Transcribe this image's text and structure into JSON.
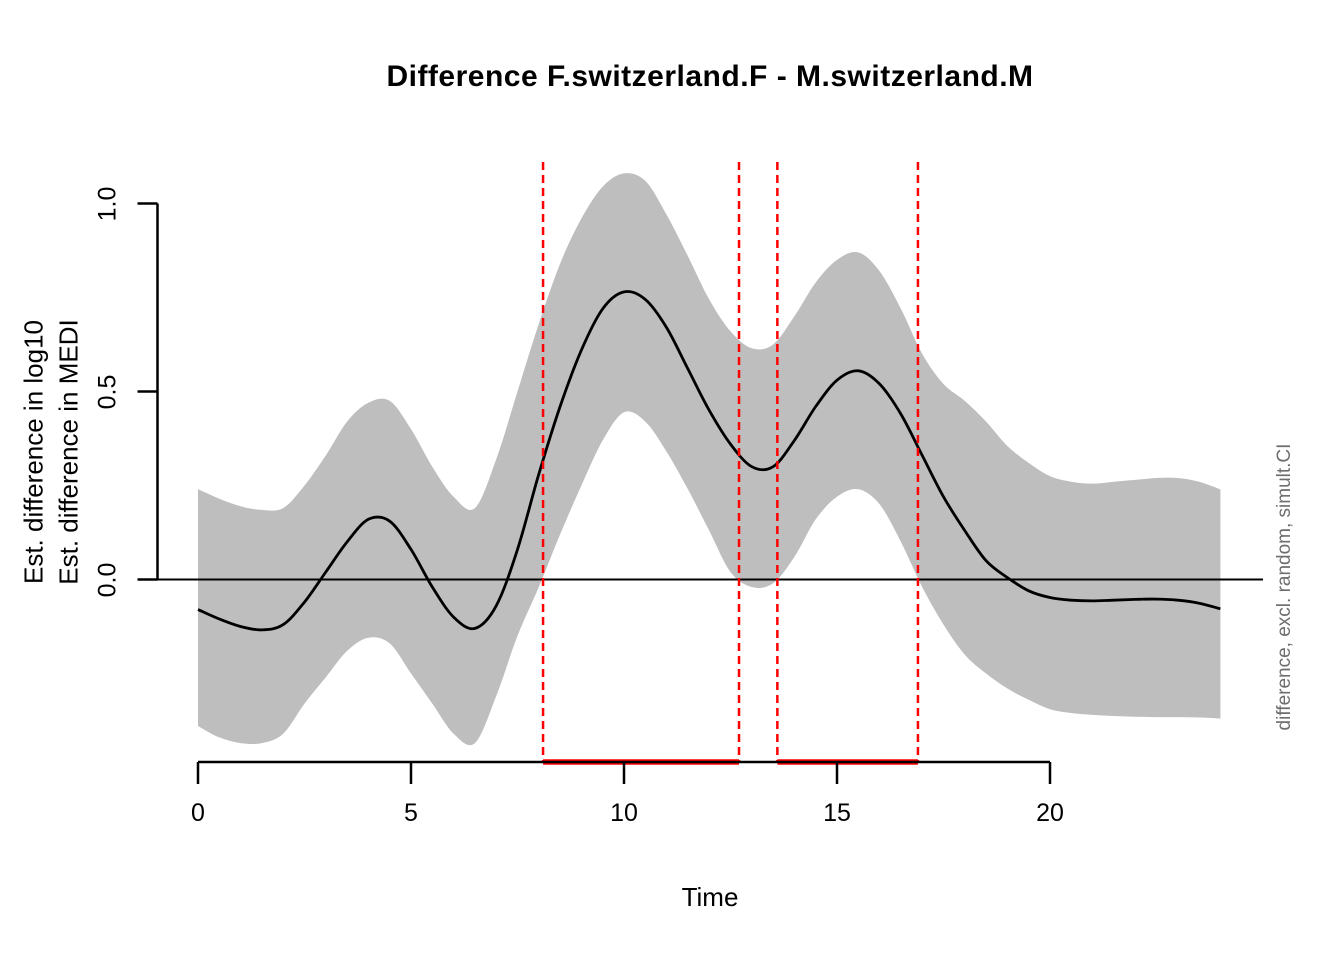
{
  "title": "Difference F.switzerland.F - M.switzerland.M",
  "chart_data": {
    "type": "line",
    "title": "Difference F.switzerland.F - M.switzerland.M",
    "xlabel": "Time",
    "ylabel_lines": [
      "Est. difference in log10",
      "Est. difference in MEDI"
    ],
    "right_label": "difference, excl. random, simult.CI",
    "legend": "none",
    "grid": "off",
    "xlim": [
      0,
      24
    ],
    "ylim": [
      -0.5,
      1.12
    ],
    "x_tick_labels": [
      "0",
      "5",
      "10",
      "15",
      "20"
    ],
    "x_tick_values": [
      0,
      5,
      10,
      15,
      20
    ],
    "y_tick_labels": [
      "0.0",
      "0.5",
      "1.0"
    ],
    "y_tick_values": [
      0,
      0.5,
      1
    ],
    "zero_reference_line": 0,
    "x": [
      0,
      0.5,
      1,
      1.5,
      2,
      2.5,
      3,
      3.5,
      4,
      4.5,
      5,
      5.5,
      6,
      6.5,
      7,
      7.5,
      8,
      8.5,
      9,
      9.5,
      10,
      10.5,
      11,
      11.5,
      12,
      12.5,
      13,
      13.5,
      14,
      14.5,
      15,
      15.5,
      16,
      16.5,
      17,
      17.5,
      18,
      18.5,
      19,
      19.5,
      20,
      20.5,
      21,
      21.5,
      22,
      22.5,
      23,
      23.5,
      24
    ],
    "series": [
      {
        "name": "estimate",
        "values": [
          -0.08,
          -0.105,
          -0.125,
          -0.134,
          -0.12,
          -0.06,
          0.02,
          0.1,
          0.16,
          0.155,
          0.08,
          -0.02,
          -0.1,
          -0.13,
          -0.07,
          0.08,
          0.28,
          0.46,
          0.61,
          0.72,
          0.765,
          0.745,
          0.67,
          0.56,
          0.45,
          0.36,
          0.3,
          0.3,
          0.37,
          0.46,
          0.53,
          0.555,
          0.52,
          0.44,
          0.33,
          0.22,
          0.13,
          0.05,
          0.005,
          -0.03,
          -0.048,
          -0.055,
          -0.057,
          -0.055,
          -0.053,
          -0.052,
          -0.055,
          -0.063,
          -0.078
        ]
      },
      {
        "name": "lower_simult_CI",
        "values": [
          -0.39,
          -0.42,
          -0.435,
          -0.435,
          -0.41,
          -0.33,
          -0.26,
          -0.19,
          -0.155,
          -0.17,
          -0.25,
          -0.33,
          -0.41,
          -0.435,
          -0.31,
          -0.15,
          -0.02,
          0.12,
          0.25,
          0.37,
          0.445,
          0.42,
          0.34,
          0.24,
          0.13,
          0.02,
          -0.02,
          -0.01,
          0.06,
          0.16,
          0.22,
          0.24,
          0.2,
          0.1,
          -0.02,
          -0.12,
          -0.2,
          -0.25,
          -0.29,
          -0.32,
          -0.345,
          -0.355,
          -0.36,
          -0.363,
          -0.365,
          -0.366,
          -0.366,
          -0.367,
          -0.37
        ]
      },
      {
        "name": "upper_simult_CI",
        "values": [
          0.24,
          0.215,
          0.195,
          0.185,
          0.19,
          0.25,
          0.33,
          0.42,
          0.47,
          0.475,
          0.4,
          0.3,
          0.22,
          0.19,
          0.32,
          0.5,
          0.68,
          0.84,
          0.96,
          1.045,
          1.08,
          1.06,
          0.97,
          0.86,
          0.745,
          0.66,
          0.615,
          0.625,
          0.7,
          0.79,
          0.85,
          0.87,
          0.82,
          0.72,
          0.6,
          0.52,
          0.475,
          0.42,
          0.355,
          0.31,
          0.275,
          0.26,
          0.255,
          0.26,
          0.265,
          0.27,
          0.27,
          0.26,
          0.24
        ]
      }
    ],
    "significant_intervals": [
      [
        8.1,
        12.7
      ],
      [
        13.6,
        16.9
      ]
    ],
    "colors": {
      "band": "#bebebe",
      "estimate_line": "#000000",
      "axis": "#000000",
      "significance": "#ff0000",
      "right_label": "#6e6e6e",
      "background": "#ffffff"
    }
  }
}
